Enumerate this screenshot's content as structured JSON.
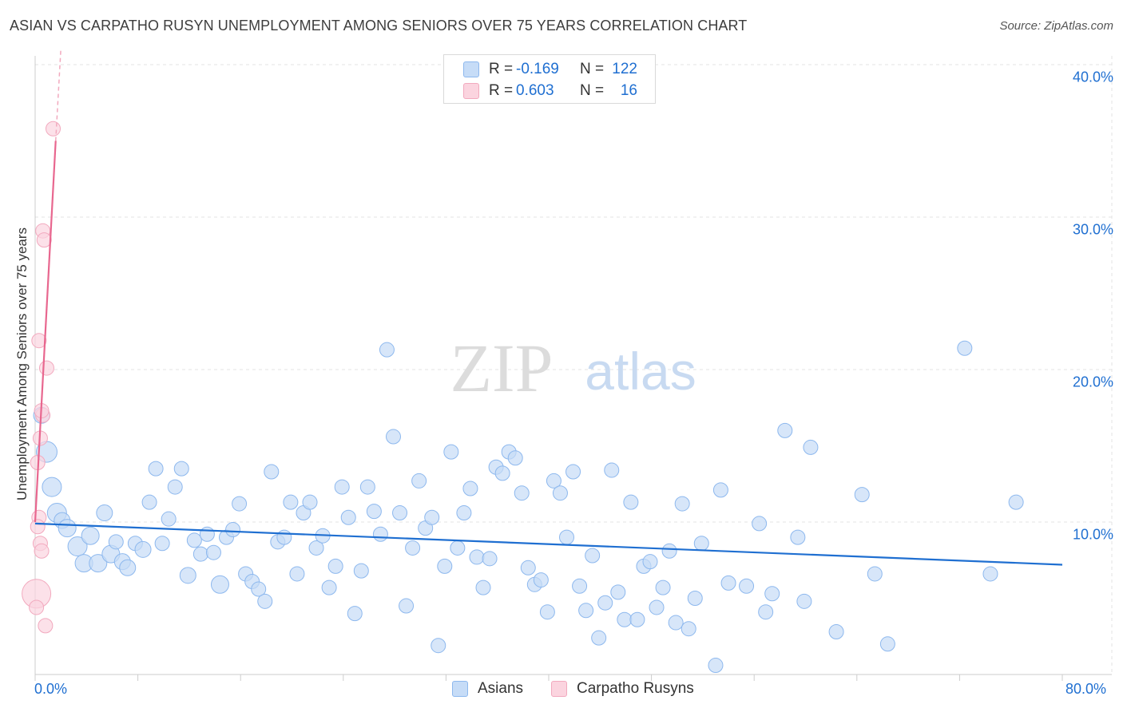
{
  "title": "ASIAN VS CARPATHO RUSYN UNEMPLOYMENT AMONG SENIORS OVER 75 YEARS CORRELATION CHART",
  "source": "Source: ZipAtlas.com",
  "watermark": {
    "zip": "ZIP",
    "atlas": "atlas"
  },
  "legend_top": {
    "rows": [
      {
        "r_label": "R =",
        "r_value": "-0.169",
        "n_label": "N =",
        "n_value": "122",
        "color": "#8db8ee",
        "fill": "#c6dcf7"
      },
      {
        "r_label": "R =",
        "r_value": "0.603",
        "n_label": "N =",
        "n_value": "16",
        "color": "#f2a9be",
        "fill": "#fbd4df"
      }
    ]
  },
  "legend_bottom": [
    {
      "label": "Asians",
      "color": "#8db8ee",
      "fill": "#c6dcf7"
    },
    {
      "label": "Carpatho Rusyns",
      "color": "#f2a9be",
      "fill": "#fbd4df"
    }
  ],
  "chart_data": {
    "type": "scatter",
    "title": "ASIAN VS CARPATHO RUSYN UNEMPLOYMENT AMONG SENIORS OVER 75 YEARS CORRELATION CHART",
    "xlabel": "",
    "ylabel": "Unemployment Among Seniors over 75 years",
    "xlim": [
      0,
      80
    ],
    "ylim": [
      0,
      41
    ],
    "x_tick_labels": [
      "0.0%",
      "80.0%"
    ],
    "y_ticks": [
      10,
      20,
      30,
      40
    ],
    "y_tick_labels": [
      "10.0%",
      "20.0%",
      "30.0%",
      "40.0%"
    ],
    "grid": true,
    "series": [
      {
        "name": "Asians",
        "color": "#1f6fd1",
        "marker_fill": "#c6dcf7",
        "marker_edge": "#8db8ee",
        "trend": {
          "x": [
            0,
            80
          ],
          "y": [
            9.9,
            7.2
          ]
        },
        "points": [
          [
            0.5,
            17.0,
            10
          ],
          [
            0.9,
            14.6,
            13
          ],
          [
            1.3,
            12.3,
            12
          ],
          [
            1.7,
            10.6,
            12
          ],
          [
            2.1,
            10.1,
            10
          ],
          [
            2.5,
            9.6,
            11
          ],
          [
            3.3,
            8.4,
            12
          ],
          [
            3.8,
            7.3,
            11
          ],
          [
            4.3,
            9.1,
            11
          ],
          [
            4.9,
            7.3,
            11
          ],
          [
            5.4,
            10.6,
            10
          ],
          [
            5.9,
            7.9,
            11
          ],
          [
            6.3,
            8.7,
            9
          ],
          [
            6.8,
            7.4,
            10
          ],
          [
            7.2,
            7.0,
            10
          ],
          [
            7.8,
            8.6,
            9
          ],
          [
            8.4,
            8.2,
            10
          ],
          [
            8.9,
            11.3,
            9
          ],
          [
            9.4,
            13.5,
            9
          ],
          [
            9.9,
            8.6,
            9
          ],
          [
            10.4,
            10.2,
            9
          ],
          [
            10.9,
            12.3,
            9
          ],
          [
            11.4,
            13.5,
            9
          ],
          [
            11.9,
            6.5,
            10
          ],
          [
            12.4,
            8.8,
            9
          ],
          [
            12.9,
            7.9,
            9
          ],
          [
            13.4,
            9.2,
            9
          ],
          [
            13.9,
            8.0,
            9
          ],
          [
            14.4,
            5.9,
            11
          ],
          [
            14.9,
            9.0,
            9
          ],
          [
            15.4,
            9.5,
            9
          ],
          [
            15.9,
            11.2,
            9
          ],
          [
            16.4,
            6.6,
            9
          ],
          [
            16.9,
            6.1,
            9
          ],
          [
            17.4,
            5.6,
            9
          ],
          [
            17.9,
            4.8,
            9
          ],
          [
            18.4,
            13.3,
            9
          ],
          [
            18.9,
            8.7,
            9
          ],
          [
            19.4,
            9.0,
            9
          ],
          [
            19.9,
            11.3,
            9
          ],
          [
            20.4,
            6.6,
            9
          ],
          [
            20.9,
            10.6,
            9
          ],
          [
            21.4,
            11.3,
            9
          ],
          [
            21.9,
            8.3,
            9
          ],
          [
            22.4,
            9.1,
            9
          ],
          [
            22.9,
            5.7,
            9
          ],
          [
            23.4,
            7.1,
            9
          ],
          [
            23.9,
            12.3,
            9
          ],
          [
            24.4,
            10.3,
            9
          ],
          [
            24.9,
            4.0,
            9
          ],
          [
            25.4,
            6.8,
            9
          ],
          [
            25.9,
            12.3,
            9
          ],
          [
            26.4,
            10.7,
            9
          ],
          [
            26.9,
            9.2,
            9
          ],
          [
            27.4,
            21.3,
            9
          ],
          [
            27.9,
            15.6,
            9
          ],
          [
            28.4,
            10.6,
            9
          ],
          [
            28.9,
            4.5,
            9
          ],
          [
            29.4,
            8.3,
            9
          ],
          [
            29.9,
            12.7,
            9
          ],
          [
            30.4,
            9.6,
            9
          ],
          [
            30.9,
            10.3,
            9
          ],
          [
            31.4,
            1.9,
            9
          ],
          [
            31.9,
            7.1,
            9
          ],
          [
            32.4,
            14.6,
            9
          ],
          [
            32.9,
            8.3,
            9
          ],
          [
            33.4,
            10.6,
            9
          ],
          [
            33.9,
            12.2,
            9
          ],
          [
            34.4,
            7.7,
            9
          ],
          [
            34.9,
            5.7,
            9
          ],
          [
            35.4,
            7.6,
            9
          ],
          [
            35.9,
            13.6,
            9
          ],
          [
            36.4,
            13.2,
            9
          ],
          [
            36.9,
            14.6,
            9
          ],
          [
            37.4,
            14.2,
            9
          ],
          [
            37.9,
            11.9,
            9
          ],
          [
            38.4,
            7.0,
            9
          ],
          [
            38.9,
            5.9,
            9
          ],
          [
            39.4,
            6.2,
            9
          ],
          [
            39.9,
            4.1,
            9
          ],
          [
            40.4,
            12.7,
            9
          ],
          [
            40.9,
            11.9,
            9
          ],
          [
            41.4,
            9.0,
            9
          ],
          [
            41.9,
            13.3,
            9
          ],
          [
            42.4,
            5.8,
            9
          ],
          [
            42.9,
            4.2,
            9
          ],
          [
            43.4,
            7.8,
            9
          ],
          [
            43.9,
            2.4,
            9
          ],
          [
            44.4,
            4.7,
            9
          ],
          [
            44.9,
            13.4,
            9
          ],
          [
            45.4,
            5.4,
            9
          ],
          [
            45.9,
            3.6,
            9
          ],
          [
            46.4,
            11.3,
            9
          ],
          [
            46.9,
            3.6,
            9
          ],
          [
            47.4,
            7.1,
            9
          ],
          [
            47.9,
            7.4,
            9
          ],
          [
            48.4,
            4.4,
            9
          ],
          [
            48.9,
            5.7,
            9
          ],
          [
            49.4,
            8.1,
            9
          ],
          [
            49.9,
            3.4,
            9
          ],
          [
            50.4,
            11.2,
            9
          ],
          [
            50.9,
            3.0,
            9
          ],
          [
            51.4,
            5.0,
            9
          ],
          [
            51.9,
            8.6,
            9
          ],
          [
            53.4,
            12.1,
            9
          ],
          [
            55.4,
            5.8,
            9
          ],
          [
            56.4,
            9.9,
            9
          ],
          [
            56.9,
            4.1,
            9
          ],
          [
            57.4,
            5.3,
            9
          ],
          [
            58.4,
            16.0,
            9
          ],
          [
            59.4,
            9.0,
            9
          ],
          [
            59.9,
            4.8,
            9
          ],
          [
            60.4,
            14.9,
            9
          ],
          [
            62.4,
            2.8,
            9
          ],
          [
            64.4,
            11.8,
            9
          ],
          [
            65.4,
            6.6,
            9
          ],
          [
            66.4,
            2.0,
            9
          ],
          [
            72.4,
            21.4,
            9
          ],
          [
            74.4,
            6.6,
            9
          ],
          [
            76.4,
            11.3,
            9
          ],
          [
            53.0,
            0.6,
            9
          ],
          [
            54.0,
            6.0,
            9
          ]
        ]
      },
      {
        "name": "Carpatho Rusyns",
        "color": "#e8678f",
        "marker_fill": "#fbd4df",
        "marker_edge": "#f2a9be",
        "trend": {
          "x": [
            0,
            1.6
          ],
          "y": [
            10.0,
            35.0
          ]
        },
        "trend_dashed_extension": {
          "x": [
            1.6,
            2.0
          ],
          "y": [
            35.0,
            41.0
          ]
        },
        "points": [
          [
            0.1,
            5.3,
            18
          ],
          [
            0.3,
            10.3,
            9
          ],
          [
            0.4,
            8.6,
            9
          ],
          [
            0.5,
            8.1,
            9
          ],
          [
            0.2,
            9.7,
            9
          ],
          [
            0.2,
            13.9,
            9
          ],
          [
            0.4,
            15.5,
            9
          ],
          [
            0.6,
            17.0,
            9
          ],
          [
            0.5,
            17.3,
            9
          ],
          [
            0.3,
            21.9,
            9
          ],
          [
            0.9,
            20.1,
            9
          ],
          [
            0.6,
            29.1,
            9
          ],
          [
            0.7,
            28.5,
            9
          ],
          [
            1.4,
            35.8,
            9
          ],
          [
            0.8,
            3.2,
            9
          ],
          [
            0.1,
            4.4,
            9
          ]
        ]
      }
    ]
  }
}
